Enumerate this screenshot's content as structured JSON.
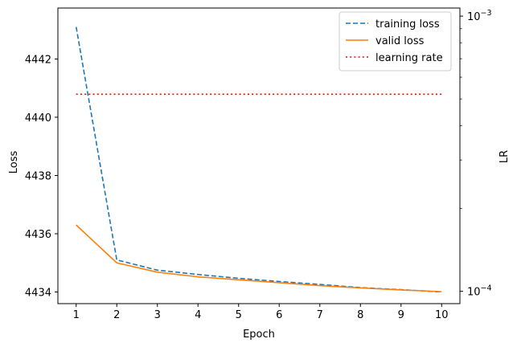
{
  "chart_data": {
    "type": "line",
    "x": [
      1,
      2,
      3,
      4,
      5,
      6,
      7,
      8,
      9,
      10
    ],
    "xlabel": "Epoch",
    "ylabel": "Loss",
    "y2label": "LR",
    "xlim": [
      0.55,
      10.45
    ],
    "ylim": [
      4433.6,
      4443.75
    ],
    "y2lim_log": [
      9.02e-05,
      0.00107
    ],
    "xticks": [
      "1",
      "2",
      "3",
      "4",
      "5",
      "6",
      "7",
      "8",
      "9",
      "10"
    ],
    "yticks": [
      4434,
      4436,
      4438,
      4440,
      4442
    ],
    "y2ticks": [
      {
        "value": 0.0001,
        "base": "10",
        "exp": "−4"
      },
      {
        "value": 0.001,
        "base": "10",
        "exp": "−3"
      }
    ],
    "y2minor": [
      0.0002,
      0.0003,
      0.0004,
      0.0005,
      0.0006,
      0.0007,
      0.0008,
      0.0009
    ],
    "series": [
      {
        "name": "training loss",
        "axis": "left",
        "color": "#1f77b4",
        "style": "dashed",
        "values": [
          4443.1,
          4435.1,
          4434.75,
          4434.6,
          4434.47,
          4434.36,
          4434.26,
          4434.15,
          4434.08,
          4434.0
        ]
      },
      {
        "name": "valid loss",
        "axis": "left",
        "color": "#ff7f0e",
        "style": "solid",
        "values": [
          4436.3,
          4435.0,
          4434.68,
          4434.52,
          4434.42,
          4434.32,
          4434.22,
          4434.14,
          4434.07,
          4434.01
        ]
      },
      {
        "name": "learning rate",
        "axis": "right",
        "color": "#ff0000",
        "style": "dotted",
        "values": [
          0.00052,
          0.00052,
          0.00052,
          0.00052,
          0.00052,
          0.00052,
          0.00052,
          0.00052,
          0.00052,
          0.00052
        ]
      }
    ],
    "legend_position": "top-right",
    "grid": false
  }
}
